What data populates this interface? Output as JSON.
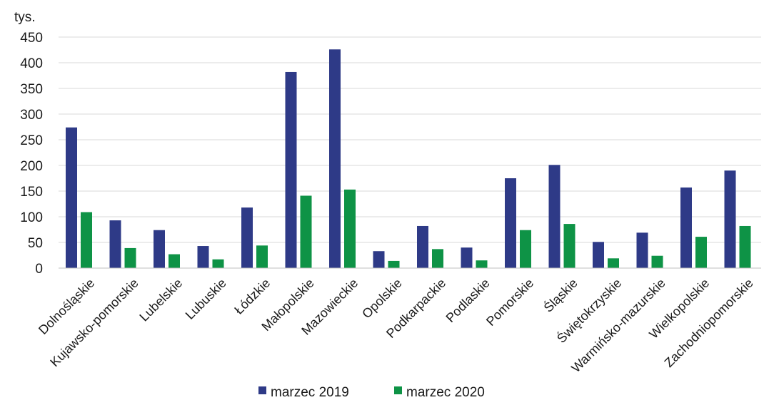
{
  "chart_data": {
    "type": "bar",
    "unit_label": "tys.",
    "ylim": [
      0,
      450
    ],
    "yticks": [
      0,
      50,
      100,
      150,
      200,
      250,
      300,
      350,
      400,
      450
    ],
    "grid": true,
    "legend_position": "bottom",
    "categories": [
      "Dolnośląskie",
      "Kujawsko-pomorskie",
      "Lubelskie",
      "Lubuskie",
      "Łódzkie",
      "Małopolskie",
      "Mazowieckie",
      "Opolskie",
      "Podkarpackie",
      "Podlaskie",
      "Pomorskie",
      "Śląskie",
      "Świętokrzyskie",
      "Warmińsko-mazurskie",
      "Wielkopolskie",
      "Zachodniopomorskie"
    ],
    "series": [
      {
        "name": "marzec 2019",
        "color": "#2e3a87",
        "values": [
          274,
          93,
          74,
          43,
          118,
          382,
          426,
          33,
          82,
          40,
          175,
          201,
          51,
          69,
          157,
          190
        ]
      },
      {
        "name": "marzec 2020",
        "color": "#0e9346",
        "values": [
          109,
          39,
          27,
          17,
          44,
          141,
          153,
          14,
          37,
          15,
          74,
          86,
          19,
          24,
          61,
          82
        ]
      }
    ]
  }
}
